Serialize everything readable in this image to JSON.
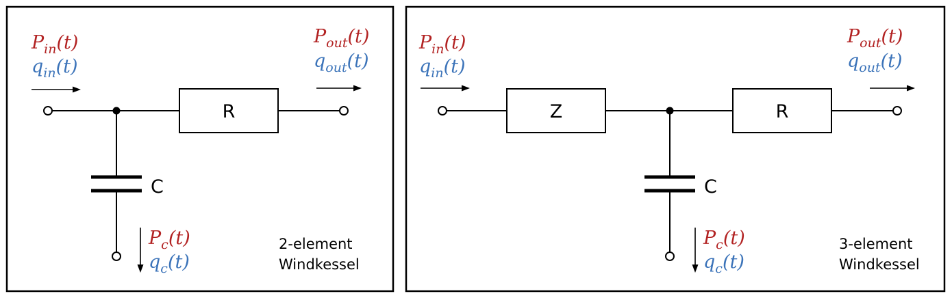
{
  "colors": {
    "pressure": "#b22222",
    "flow": "#3b73b9"
  },
  "panels": [
    {
      "caption_line1": "2-element",
      "caption_line2": "Windkessel",
      "components": {
        "r": "R",
        "c": "C"
      },
      "signals": {
        "p_in": {
          "sym": "P",
          "sub": "in",
          "arg": "(t)"
        },
        "q_in": {
          "sym": "q",
          "sub": "in",
          "arg": "(t)"
        },
        "p_out": {
          "sym": "P",
          "sub": "out",
          "arg": "(t)"
        },
        "q_out": {
          "sym": "q",
          "sub": "out",
          "arg": "(t)"
        },
        "p_c": {
          "sym": "P",
          "sub": "c",
          "arg": "(t)"
        },
        "q_c": {
          "sym": "q",
          "sub": "c",
          "arg": "(t)"
        }
      }
    },
    {
      "caption_line1": "3-element",
      "caption_line2": "Windkessel",
      "components": {
        "z": "Z",
        "r": "R",
        "c": "C"
      },
      "signals": {
        "p_in": {
          "sym": "P",
          "sub": "in",
          "arg": "(t)"
        },
        "q_in": {
          "sym": "q",
          "sub": "in",
          "arg": "(t)"
        },
        "p_out": {
          "sym": "P",
          "sub": "out",
          "arg": "(t)"
        },
        "q_out": {
          "sym": "q",
          "sub": "out",
          "arg": "(t)"
        },
        "p_c": {
          "sym": "P",
          "sub": "c",
          "arg": "(t)"
        },
        "q_c": {
          "sym": "q",
          "sub": "c",
          "arg": "(t)"
        }
      }
    }
  ]
}
